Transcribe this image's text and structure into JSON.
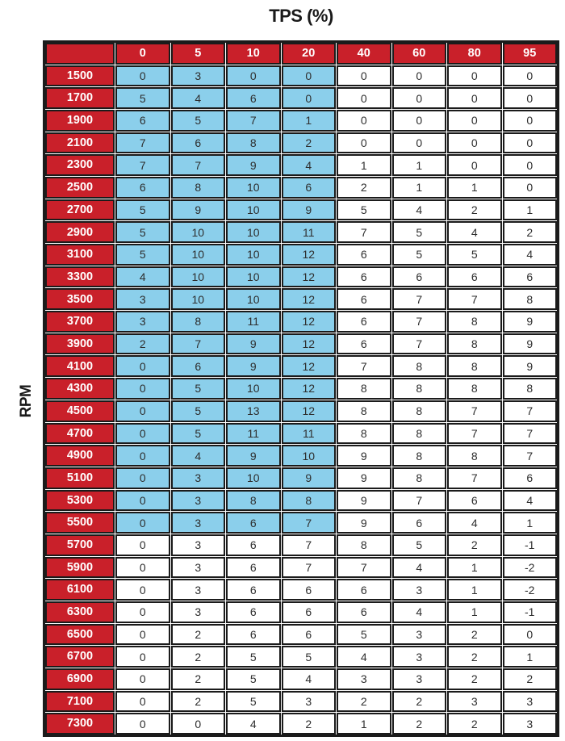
{
  "title": "TPS (%)",
  "y_axis_label": "RPM",
  "colors": {
    "header_bg": "#c9202a",
    "header_text": "#ffffff",
    "highlight_bg": "#8bcfeb",
    "cell_bg": "#ffffff",
    "border": "#1b1b1b",
    "value_text": "#2e2e2e",
    "title_text": "#1a1a1a"
  },
  "chart_data": {
    "type": "table",
    "title": "TPS (%)",
    "col_axis_label": "TPS (%)",
    "row_axis_label": "RPM",
    "corner_label": "",
    "col_headers": [
      "0",
      "5",
      "10",
      "20",
      "40",
      "60",
      "80",
      "95"
    ],
    "row_headers": [
      "1500",
      "1700",
      "1900",
      "2100",
      "2300",
      "2500",
      "2700",
      "2900",
      "3100",
      "3300",
      "3500",
      "3700",
      "3900",
      "4100",
      "4300",
      "4500",
      "4700",
      "4900",
      "5100",
      "5300",
      "5500",
      "5700",
      "5900",
      "6100",
      "6300",
      "6500",
      "6700",
      "6900",
      "7100",
      "7300"
    ],
    "rows": [
      [
        0,
        3,
        0,
        0,
        0,
        0,
        0,
        0
      ],
      [
        5,
        4,
        6,
        0,
        0,
        0,
        0,
        0
      ],
      [
        6,
        5,
        7,
        1,
        0,
        0,
        0,
        0
      ],
      [
        7,
        6,
        8,
        2,
        0,
        0,
        0,
        0
      ],
      [
        7,
        7,
        9,
        4,
        1,
        1,
        0,
        0
      ],
      [
        6,
        8,
        10,
        6,
        2,
        1,
        1,
        0
      ],
      [
        5,
        9,
        10,
        9,
        5,
        4,
        2,
        1
      ],
      [
        5,
        10,
        10,
        11,
        7,
        5,
        4,
        2
      ],
      [
        5,
        10,
        10,
        12,
        6,
        5,
        5,
        4
      ],
      [
        4,
        10,
        10,
        12,
        6,
        6,
        6,
        6
      ],
      [
        3,
        10,
        10,
        12,
        6,
        7,
        7,
        8
      ],
      [
        3,
        8,
        11,
        12,
        6,
        7,
        8,
        9
      ],
      [
        2,
        7,
        9,
        12,
        6,
        7,
        8,
        9
      ],
      [
        0,
        6,
        9,
        12,
        7,
        8,
        8,
        9
      ],
      [
        0,
        5,
        10,
        12,
        8,
        8,
        8,
        8
      ],
      [
        0,
        5,
        13,
        12,
        8,
        8,
        7,
        7
      ],
      [
        0,
        5,
        11,
        11,
        8,
        8,
        7,
        7
      ],
      [
        0,
        4,
        9,
        10,
        9,
        8,
        8,
        7
      ],
      [
        0,
        3,
        10,
        9,
        9,
        8,
        7,
        6
      ],
      [
        0,
        3,
        8,
        8,
        9,
        7,
        6,
        4
      ],
      [
        0,
        3,
        6,
        7,
        9,
        6,
        4,
        1
      ],
      [
        0,
        3,
        6,
        7,
        8,
        5,
        2,
        -1
      ],
      [
        0,
        3,
        6,
        7,
        7,
        4,
        1,
        -2
      ],
      [
        0,
        3,
        6,
        6,
        6,
        3,
        1,
        -2
      ],
      [
        0,
        3,
        6,
        6,
        6,
        4,
        1,
        -1
      ],
      [
        0,
        2,
        6,
        6,
        5,
        3,
        2,
        0
      ],
      [
        0,
        2,
        5,
        5,
        4,
        3,
        2,
        1
      ],
      [
        0,
        2,
        5,
        4,
        3,
        3,
        2,
        2
      ],
      [
        0,
        2,
        5,
        3,
        2,
        2,
        3,
        3
      ],
      [
        0,
        0,
        4,
        2,
        1,
        2,
        2,
        3
      ]
    ],
    "highlight": {
      "description": "Light blue shaded cells covering RPM rows 1500-5500 at TPS columns 0-20",
      "row_range": [
        "1500",
        "5500"
      ],
      "col_range": [
        "0",
        "20"
      ],
      "rows_count": 21,
      "cols_count": 4,
      "color": "#8bcfeb"
    },
    "layout": {
      "grid": "on",
      "row_axis_label_position": "left-rotated",
      "col_axis_label_position": "top-center"
    }
  }
}
